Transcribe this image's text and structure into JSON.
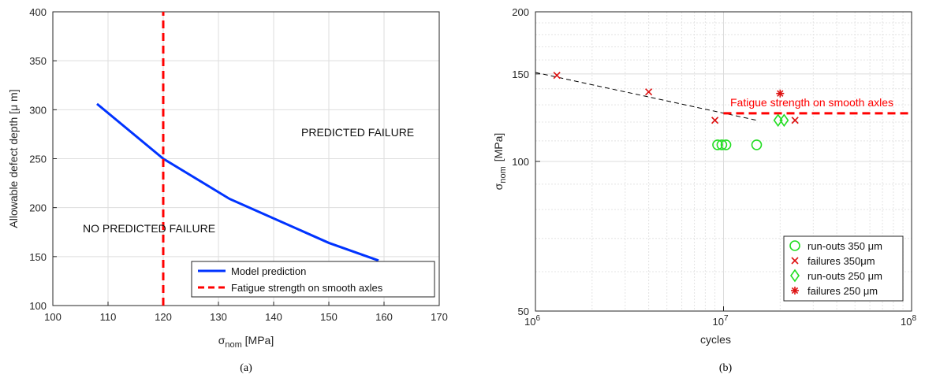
{
  "panel_a": {
    "caption": "(a)",
    "annotation_failure": "PREDICTED FAILURE",
    "annotation_no_failure": "NO PREDICTED FAILURE",
    "chart_data": {
      "type": "line",
      "xlabel_main": "σ",
      "xlabel_sub": "nom",
      "xlabel_unit": " [MPa]",
      "ylabel": "Allowable defect depth [μ m]",
      "xlim": [
        100,
        170
      ],
      "ylim": [
        100,
        400
      ],
      "xticks": [
        100,
        110,
        120,
        130,
        140,
        150,
        160,
        170
      ],
      "yticks": [
        100,
        150,
        200,
        250,
        300,
        350,
        400
      ],
      "grid": true,
      "legend_position": "bottom-right",
      "series": [
        {
          "name": "Model prediction",
          "color": "#0033ff",
          "style": "solid",
          "x": [
            108,
            120,
            132,
            150,
            159
          ],
          "y": [
            306,
            250,
            209,
            164,
            146
          ]
        },
        {
          "name": "Fatigue strength on smooth axles",
          "color": "#ff0000",
          "style": "dashed",
          "x": [
            120,
            120
          ],
          "y": [
            100,
            400
          ]
        }
      ]
    }
  },
  "panel_b": {
    "caption": "(b)",
    "annotation_strength": "Fatigue strength on smooth axles",
    "chart_data": {
      "type": "scatter",
      "xlabel": "cycles",
      "ylabel_main": "σ",
      "ylabel_sub": "nom",
      "ylabel_unit": "[MPa]",
      "xscale": "log",
      "yscale": "log",
      "xlim": [
        1000000,
        100000000
      ],
      "ylim": [
        50,
        200
      ],
      "xticks": [
        {
          "base": "10",
          "exp": "6",
          "value": 1000000
        },
        {
          "base": "10",
          "exp": "7",
          "value": 10000000
        },
        {
          "base": "10",
          "exp": "8",
          "value": 100000000
        }
      ],
      "yticks": [
        50,
        100,
        150,
        200
      ],
      "grid": true,
      "legend_position": "bottom-right",
      "series": [
        {
          "name": "run-outs 350 μm",
          "marker": "circle",
          "color": "#22dd22",
          "points": [
            [
              9300000,
              108
            ],
            [
              9800000,
              108
            ],
            [
              10300000,
              108
            ],
            [
              15000000,
              108
            ]
          ]
        },
        {
          "name": "failures 350μm",
          "marker": "x",
          "color": "#dd1111",
          "points": [
            [
              1300000,
              149
            ],
            [
              4000000,
              138
            ],
            [
              9000000,
              121
            ],
            [
              24000000,
              121
            ]
          ]
        },
        {
          "name": "run-outs 250 μm",
          "marker": "diamond",
          "color": "#22dd22",
          "points": [
            [
              19500000,
              121
            ],
            [
              21000000,
              121
            ]
          ]
        },
        {
          "name": "failures 250 μm",
          "marker": "asterisk",
          "color": "#dd1111",
          "points": [
            [
              20000000,
              137
            ]
          ]
        }
      ],
      "lines": [
        {
          "kind": "trend",
          "style": "dashed",
          "color": "#000000",
          "points": [
            [
              1000000,
              151
            ],
            [
              15000000,
              121
            ]
          ]
        },
        {
          "kind": "fatigue-strength",
          "style": "dashed",
          "color": "#ff0000",
          "points": [
            [
              10000000,
              125
            ],
            [
              100000000,
              125
            ]
          ]
        }
      ]
    }
  }
}
